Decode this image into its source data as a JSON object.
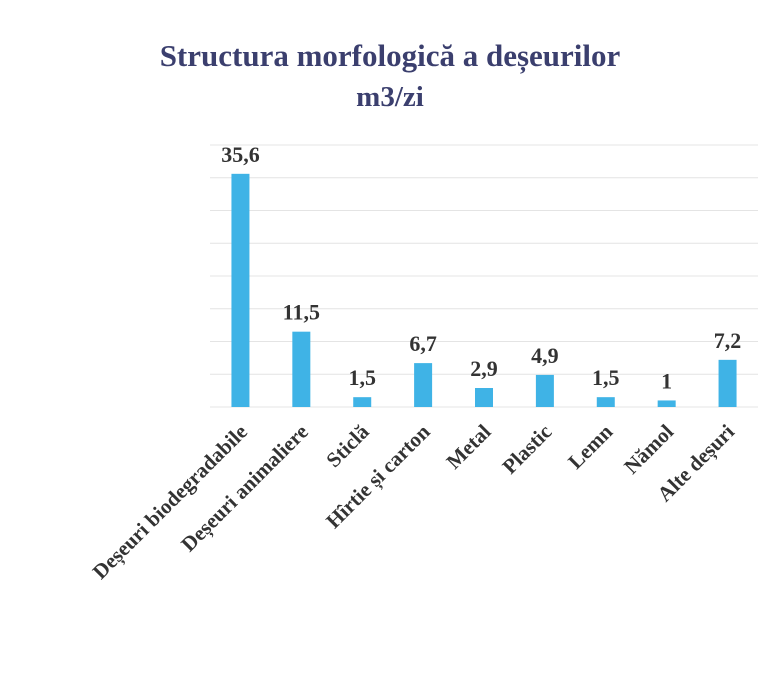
{
  "chart_data": {
    "type": "bar",
    "title": "Structura morfologică a deșeurilor",
    "subtitle": "m3/zi",
    "categories": [
      "Deșeuri biodegradabile",
      "Deșeuri animaliere",
      "Sticlă",
      "Hîrtie și carton",
      "Metal",
      "Plastic",
      "Lemn",
      "Nămol",
      "Alte deșuri"
    ],
    "values": [
      35.6,
      11.5,
      1.5,
      6.7,
      2.9,
      4.9,
      1.5,
      1,
      7.2
    ],
    "value_labels": [
      "35,6",
      "11,5",
      "1,5",
      "6,7",
      "2,9",
      "4,9",
      "1,5",
      "1",
      "7,2"
    ],
    "color": "#3fb3e6",
    "ylim": [
      0,
      40
    ],
    "yticks": [
      0,
      5,
      10,
      15,
      20,
      25,
      30,
      35,
      40
    ],
    "grid": true
  }
}
